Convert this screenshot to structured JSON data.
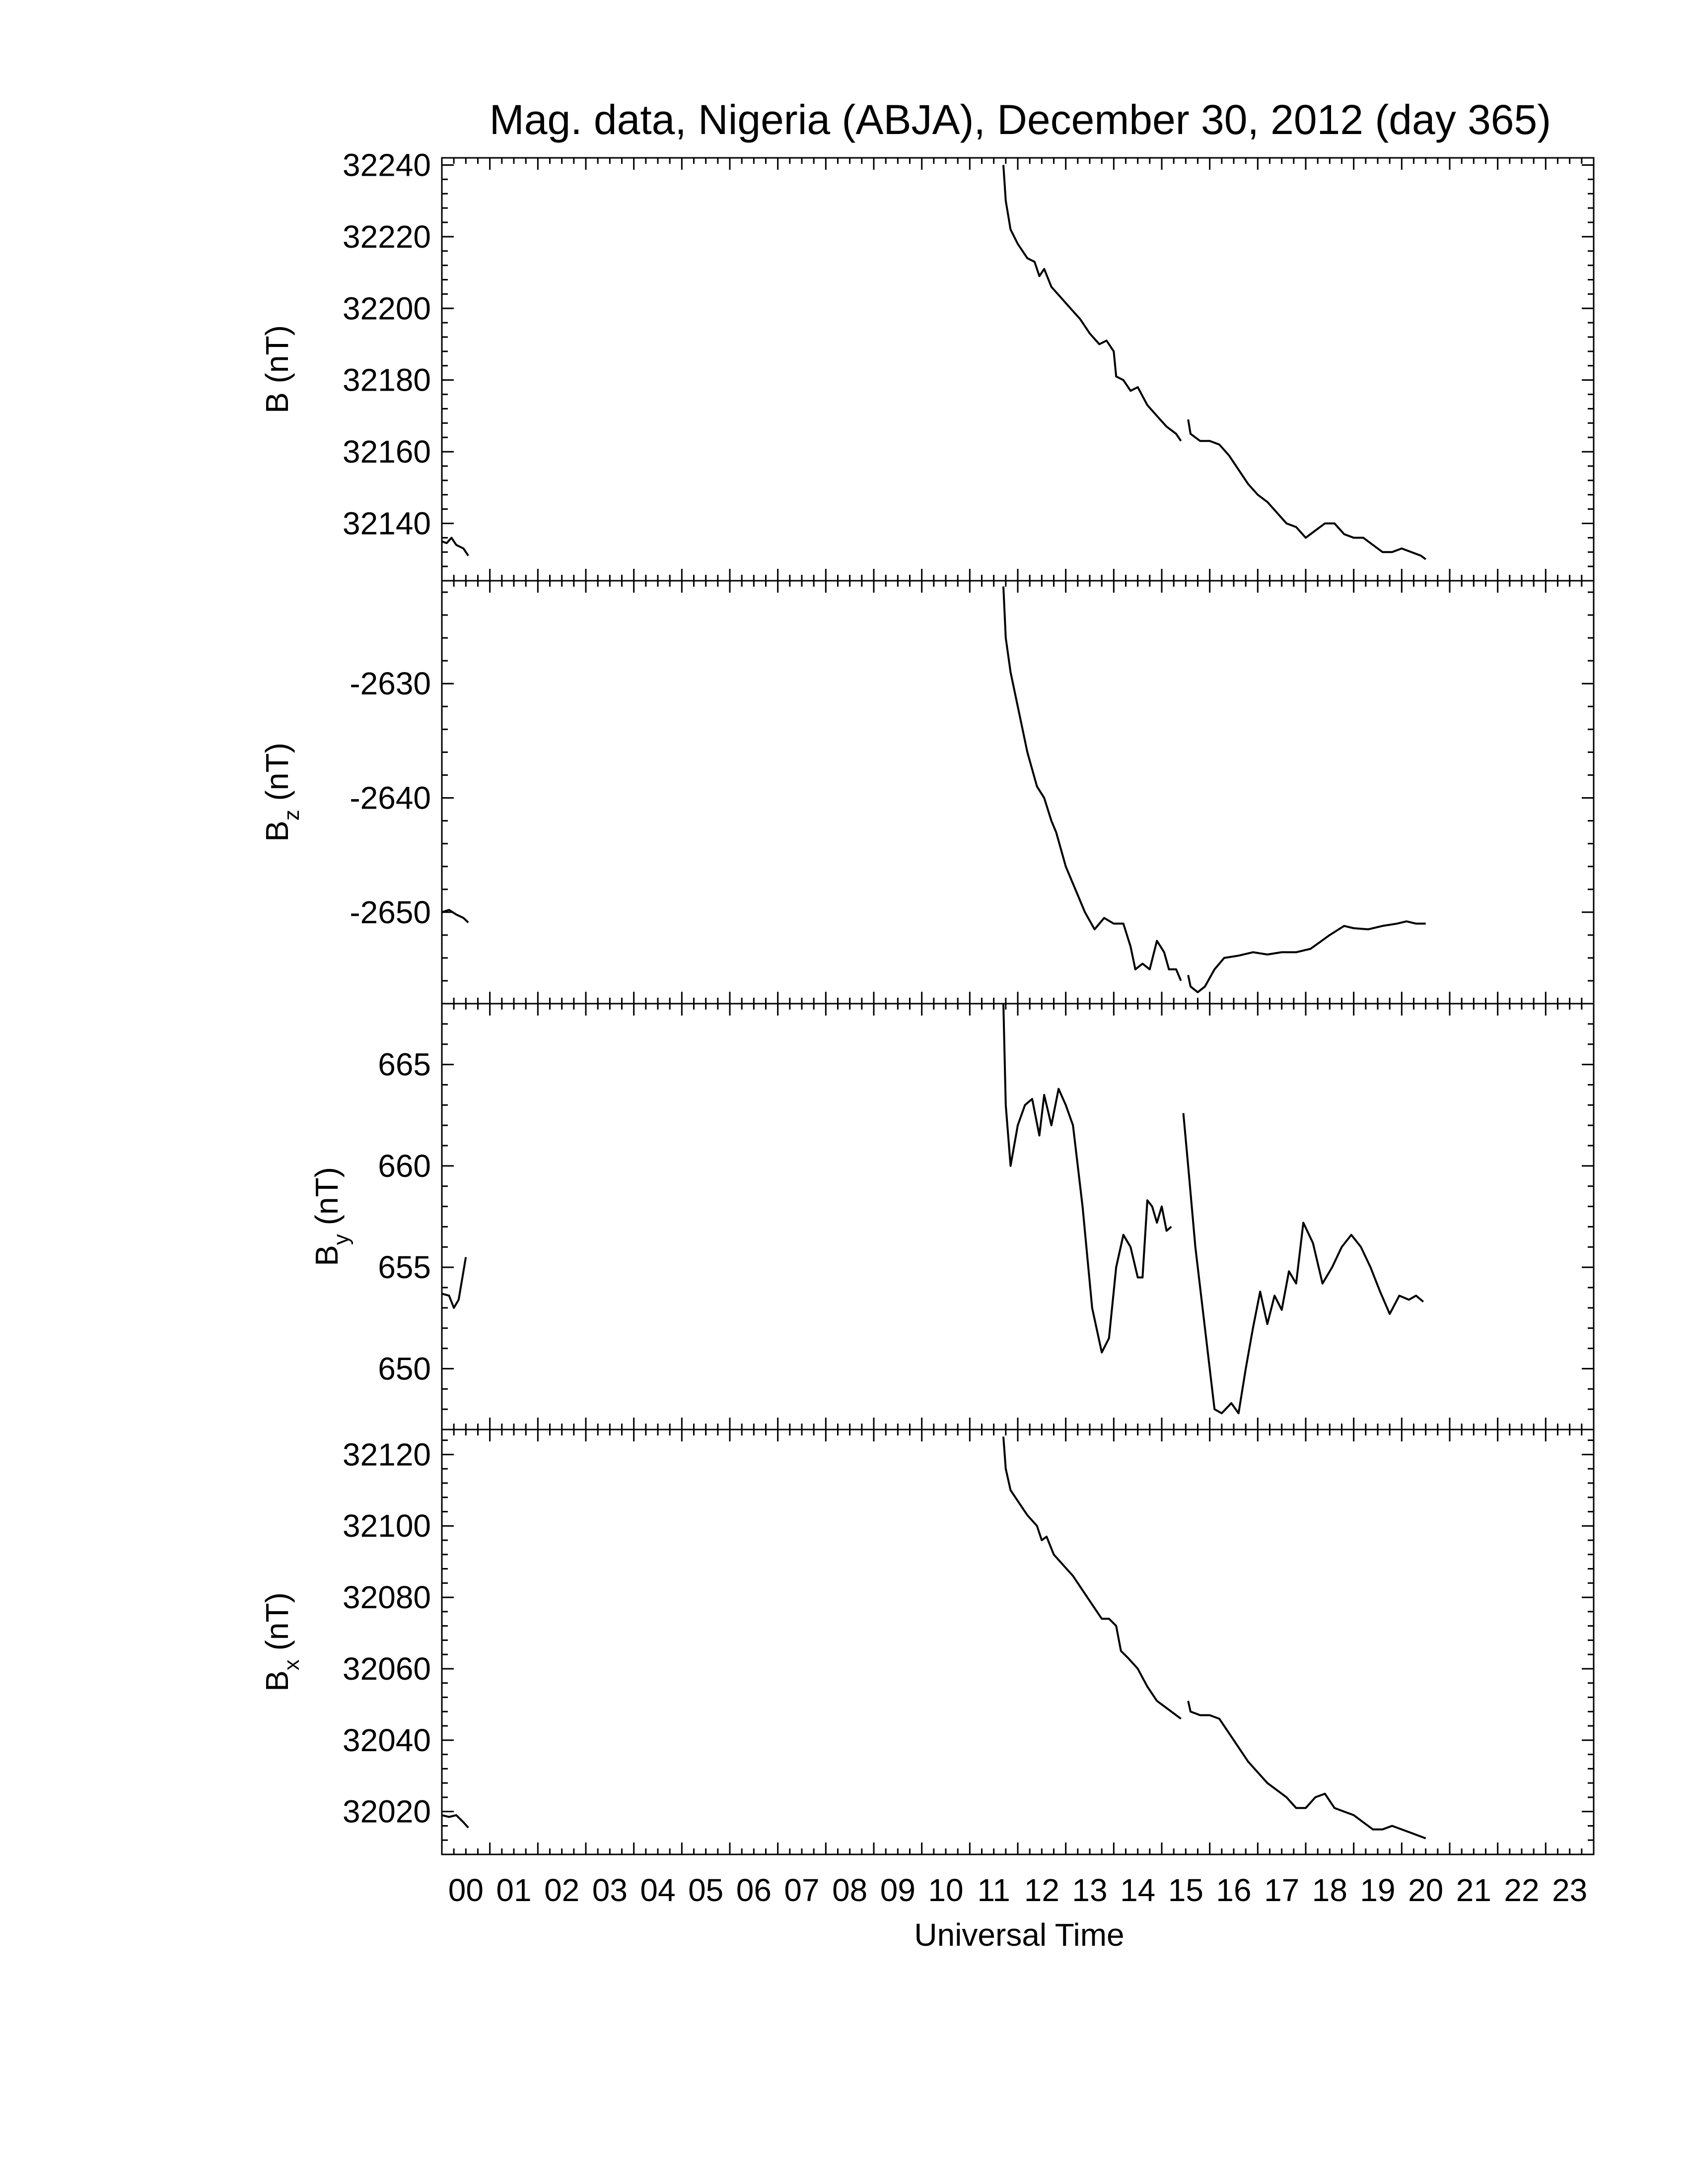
{
  "title": "Mag. data, Nigeria (ABJA), December 30, 2012 (day 365)",
  "xlabel": "Universal Time",
  "x_ticks": [
    "00",
    "01",
    "02",
    "03",
    "04",
    "05",
    "06",
    "07",
    "08",
    "09",
    "10",
    "11",
    "12",
    "13",
    "14",
    "15",
    "16",
    "17",
    "18",
    "19",
    "20",
    "21",
    "22",
    "23"
  ],
  "x_range_hours": [
    0,
    24
  ],
  "chart_data": [
    {
      "type": "line",
      "ylabel": "B (nT)",
      "ylabel_main": "B",
      "ylabel_sub": "",
      "ylabel_unit": " (nT)",
      "ylim": [
        32124,
        32242
      ],
      "yticks": [
        32140,
        32160,
        32180,
        32200,
        32220,
        32240
      ],
      "minor_step": 4,
      "segments": [
        [
          [
            0.0,
            32135
          ],
          [
            0.1,
            32134.5
          ],
          [
            0.2,
            32136
          ],
          [
            0.3,
            32134
          ],
          [
            0.45,
            32133
          ],
          [
            0.55,
            32131
          ]
        ],
        [
          [
            11.7,
            32240
          ],
          [
            11.75,
            32230
          ],
          [
            11.85,
            32222
          ],
          [
            12.0,
            32218
          ],
          [
            12.2,
            32214
          ],
          [
            12.35,
            32213
          ],
          [
            12.45,
            32209
          ],
          [
            12.55,
            32211
          ],
          [
            12.7,
            32206
          ],
          [
            12.9,
            32203
          ],
          [
            13.1,
            32200
          ],
          [
            13.3,
            32197
          ],
          [
            13.5,
            32193
          ],
          [
            13.7,
            32190
          ],
          [
            13.85,
            32191
          ],
          [
            14.0,
            32188
          ],
          [
            14.05,
            32181
          ],
          [
            14.2,
            32180
          ],
          [
            14.35,
            32177
          ],
          [
            14.5,
            32178
          ],
          [
            14.7,
            32173
          ],
          [
            14.9,
            32170
          ],
          [
            15.1,
            32167
          ],
          [
            15.3,
            32165
          ],
          [
            15.4,
            32163
          ]
        ],
        [
          [
            15.55,
            32169
          ],
          [
            15.6,
            32165
          ],
          [
            15.8,
            32163
          ],
          [
            16.0,
            32163
          ],
          [
            16.2,
            32162
          ],
          [
            16.4,
            32159
          ],
          [
            16.6,
            32155
          ],
          [
            16.8,
            32151
          ],
          [
            17.0,
            32148
          ],
          [
            17.2,
            32146
          ],
          [
            17.4,
            32143
          ],
          [
            17.6,
            32140
          ],
          [
            17.8,
            32139
          ],
          [
            18.0,
            32136
          ],
          [
            18.2,
            32138
          ],
          [
            18.4,
            32140
          ],
          [
            18.6,
            32140
          ],
          [
            18.8,
            32137
          ],
          [
            19.0,
            32136
          ],
          [
            19.2,
            32136
          ],
          [
            19.4,
            32134
          ],
          [
            19.6,
            32132
          ],
          [
            19.8,
            32132
          ],
          [
            20.0,
            32133
          ],
          [
            20.2,
            32132
          ],
          [
            20.4,
            32131
          ],
          [
            20.5,
            32130
          ]
        ]
      ]
    },
    {
      "type": "line",
      "ylabel": "B z (nT)",
      "ylabel_main": "B",
      "ylabel_sub": "z",
      "ylabel_unit": " (nT)",
      "ylim": [
        -2658,
        -2621
      ],
      "yticks": [
        -2630,
        -2640,
        -2650
      ],
      "minor_step": 2,
      "segments": [
        [
          [
            0.0,
            -2650
          ],
          [
            0.15,
            -2649.8
          ],
          [
            0.3,
            -2650.2
          ],
          [
            0.45,
            -2650.5
          ],
          [
            0.55,
            -2650.9
          ]
        ],
        [
          [
            11.7,
            -2621.5
          ],
          [
            11.75,
            -2626
          ],
          [
            11.85,
            -2629
          ],
          [
            12.0,
            -2632
          ],
          [
            12.2,
            -2636
          ],
          [
            12.4,
            -2639
          ],
          [
            12.55,
            -2640
          ],
          [
            12.7,
            -2642
          ],
          [
            12.8,
            -2643
          ],
          [
            13.0,
            -2646
          ],
          [
            13.2,
            -2648
          ],
          [
            13.4,
            -2650
          ],
          [
            13.6,
            -2651.5
          ],
          [
            13.8,
            -2650.5
          ],
          [
            14.0,
            -2651
          ],
          [
            14.2,
            -2651
          ],
          [
            14.35,
            -2653
          ],
          [
            14.45,
            -2655
          ],
          [
            14.6,
            -2654.5
          ],
          [
            14.75,
            -2655
          ],
          [
            14.9,
            -2652.5
          ],
          [
            15.05,
            -2653.5
          ],
          [
            15.15,
            -2655
          ],
          [
            15.3,
            -2655
          ],
          [
            15.4,
            -2656
          ]
        ],
        [
          [
            15.55,
            -2655.5
          ],
          [
            15.6,
            -2656.5
          ],
          [
            15.75,
            -2657
          ],
          [
            15.9,
            -2656.5
          ],
          [
            16.1,
            -2655
          ],
          [
            16.3,
            -2654
          ],
          [
            16.6,
            -2653.8
          ],
          [
            16.9,
            -2653.5
          ],
          [
            17.2,
            -2653.7
          ],
          [
            17.5,
            -2653.5
          ],
          [
            17.8,
            -2653.5
          ],
          [
            18.1,
            -2653.2
          ],
          [
            18.3,
            -2652.6
          ],
          [
            18.5,
            -2652
          ],
          [
            18.8,
            -2651.2
          ],
          [
            19.0,
            -2651.4
          ],
          [
            19.3,
            -2651.5
          ],
          [
            19.6,
            -2651.2
          ],
          [
            19.9,
            -2651
          ],
          [
            20.1,
            -2650.8
          ],
          [
            20.3,
            -2651
          ],
          [
            20.5,
            -2651
          ]
        ]
      ]
    },
    {
      "type": "line",
      "ylabel": "B y (nT)",
      "ylabel_main": "B",
      "ylabel_sub": "y",
      "ylabel_unit": " (nT)",
      "ylim": [
        647,
        668
      ],
      "yticks": [
        650,
        655,
        660,
        665
      ],
      "minor_step": 1,
      "segments": [
        [
          [
            0.0,
            653.7
          ],
          [
            0.15,
            653.6
          ],
          [
            0.25,
            653.0
          ],
          [
            0.35,
            653.4
          ],
          [
            0.5,
            655.5
          ]
        ],
        [
          [
            11.7,
            668
          ],
          [
            11.75,
            663
          ],
          [
            11.85,
            660
          ],
          [
            12.0,
            662
          ],
          [
            12.15,
            663
          ],
          [
            12.3,
            663.3
          ],
          [
            12.45,
            661.5
          ],
          [
            12.55,
            663.5
          ],
          [
            12.7,
            662
          ],
          [
            12.85,
            663.8
          ],
          [
            13.0,
            663
          ],
          [
            13.15,
            662
          ],
          [
            13.35,
            658
          ],
          [
            13.55,
            653
          ],
          [
            13.75,
            650.8
          ],
          [
            13.9,
            651.5
          ],
          [
            14.05,
            655
          ],
          [
            14.2,
            656.6
          ],
          [
            14.35,
            656
          ],
          [
            14.5,
            654.5
          ],
          [
            14.6,
            654.5
          ],
          [
            14.7,
            658.3
          ],
          [
            14.8,
            658
          ],
          [
            14.9,
            657.2
          ],
          [
            15.0,
            658
          ],
          [
            15.1,
            656.8
          ],
          [
            15.2,
            657.0
          ]
        ],
        [
          [
            15.45,
            662.6
          ],
          [
            15.55,
            660
          ],
          [
            15.7,
            656
          ],
          [
            15.9,
            652
          ],
          [
            16.1,
            648
          ],
          [
            16.25,
            647.8
          ],
          [
            16.45,
            648.3
          ],
          [
            16.6,
            647.8
          ],
          [
            16.75,
            650
          ],
          [
            16.9,
            652
          ],
          [
            17.05,
            653.8
          ],
          [
            17.2,
            652.2
          ],
          [
            17.35,
            653.6
          ],
          [
            17.5,
            652.9
          ],
          [
            17.65,
            654.8
          ],
          [
            17.8,
            654.2
          ],
          [
            17.95,
            657.2
          ],
          [
            18.15,
            656.2
          ],
          [
            18.35,
            654.2
          ],
          [
            18.55,
            655
          ],
          [
            18.75,
            656
          ],
          [
            18.95,
            656.6
          ],
          [
            19.15,
            656
          ],
          [
            19.35,
            655
          ],
          [
            19.55,
            653.8
          ],
          [
            19.75,
            652.7
          ],
          [
            19.95,
            653.6
          ],
          [
            20.15,
            653.4
          ],
          [
            20.3,
            653.6
          ],
          [
            20.45,
            653.3
          ]
        ]
      ]
    },
    {
      "type": "line",
      "ylabel": "B x (nT)",
      "ylabel_main": "B",
      "ylabel_sub": "x",
      "ylabel_unit": " (nT)",
      "ylim": [
        32008,
        32127
      ],
      "yticks": [
        32020,
        32040,
        32060,
        32080,
        32100,
        32120
      ],
      "minor_step": 4,
      "segments": [
        [
          [
            0.0,
            32019
          ],
          [
            0.15,
            32018.5
          ],
          [
            0.3,
            32019
          ],
          [
            0.45,
            32017
          ],
          [
            0.55,
            32015.5
          ]
        ],
        [
          [
            11.7,
            32125
          ],
          [
            11.75,
            32116
          ],
          [
            11.85,
            32110
          ],
          [
            12.0,
            32107
          ],
          [
            12.2,
            32103
          ],
          [
            12.4,
            32100
          ],
          [
            12.5,
            32096
          ],
          [
            12.6,
            32097
          ],
          [
            12.75,
            32092
          ],
          [
            12.95,
            32089
          ],
          [
            13.15,
            32086
          ],
          [
            13.35,
            32082
          ],
          [
            13.55,
            32078
          ],
          [
            13.75,
            32074
          ],
          [
            13.9,
            32074
          ],
          [
            14.05,
            32072
          ],
          [
            14.15,
            32065
          ],
          [
            14.3,
            32063
          ],
          [
            14.5,
            32060
          ],
          [
            14.7,
            32055
          ],
          [
            14.9,
            32051
          ],
          [
            15.1,
            32049
          ],
          [
            15.3,
            32047
          ],
          [
            15.4,
            32046
          ]
        ],
        [
          [
            15.55,
            32051
          ],
          [
            15.6,
            32048
          ],
          [
            15.8,
            32047
          ],
          [
            16.0,
            32047
          ],
          [
            16.2,
            32046
          ],
          [
            16.4,
            32042
          ],
          [
            16.6,
            32038
          ],
          [
            16.8,
            32034
          ],
          [
            17.0,
            32031
          ],
          [
            17.2,
            32028
          ],
          [
            17.4,
            32026
          ],
          [
            17.6,
            32024
          ],
          [
            17.8,
            32021
          ],
          [
            18.0,
            32021
          ],
          [
            18.2,
            32024
          ],
          [
            18.4,
            32025
          ],
          [
            18.6,
            32021
          ],
          [
            18.8,
            32020
          ],
          [
            19.0,
            32019
          ],
          [
            19.2,
            32017
          ],
          [
            19.4,
            32015
          ],
          [
            19.6,
            32015
          ],
          [
            19.8,
            32016
          ],
          [
            20.0,
            32015
          ],
          [
            20.2,
            32014
          ],
          [
            20.4,
            32013
          ],
          [
            20.5,
            32012.5
          ]
        ]
      ]
    }
  ]
}
